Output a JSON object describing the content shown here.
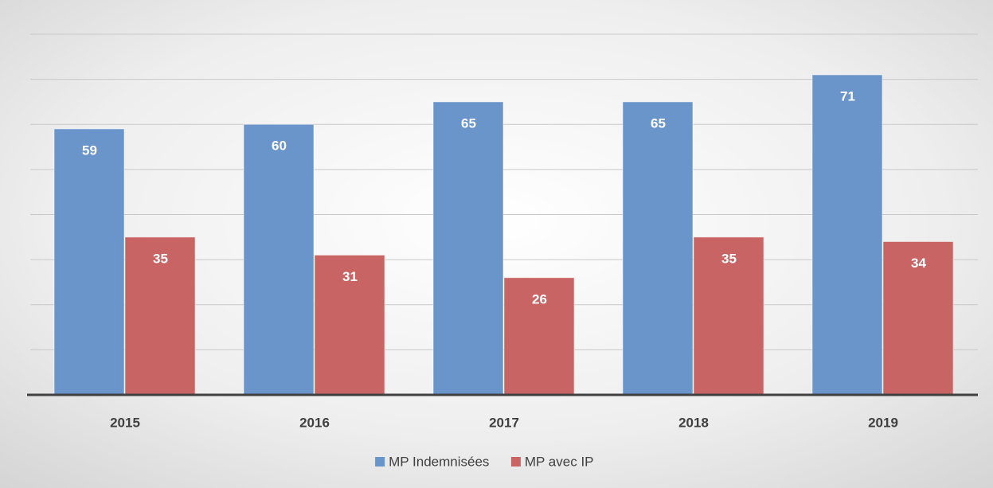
{
  "chart_data": {
    "type": "bar",
    "categories": [
      "2015",
      "2016",
      "2017",
      "2018",
      "2019"
    ],
    "series": [
      {
        "name": "MP Indemnisées",
        "color": "#6a95cb",
        "values": [
          59,
          60,
          65,
          65,
          71
        ]
      },
      {
        "name": "MP avec IP",
        "color": "#c96464",
        "values": [
          35,
          31,
          26,
          35,
          34
        ]
      }
    ],
    "ylim": [
      0,
      80
    ],
    "yticks": [
      0,
      10,
      20,
      30,
      40,
      50,
      60,
      70,
      80
    ],
    "grid": true,
    "legend": "bottom"
  }
}
